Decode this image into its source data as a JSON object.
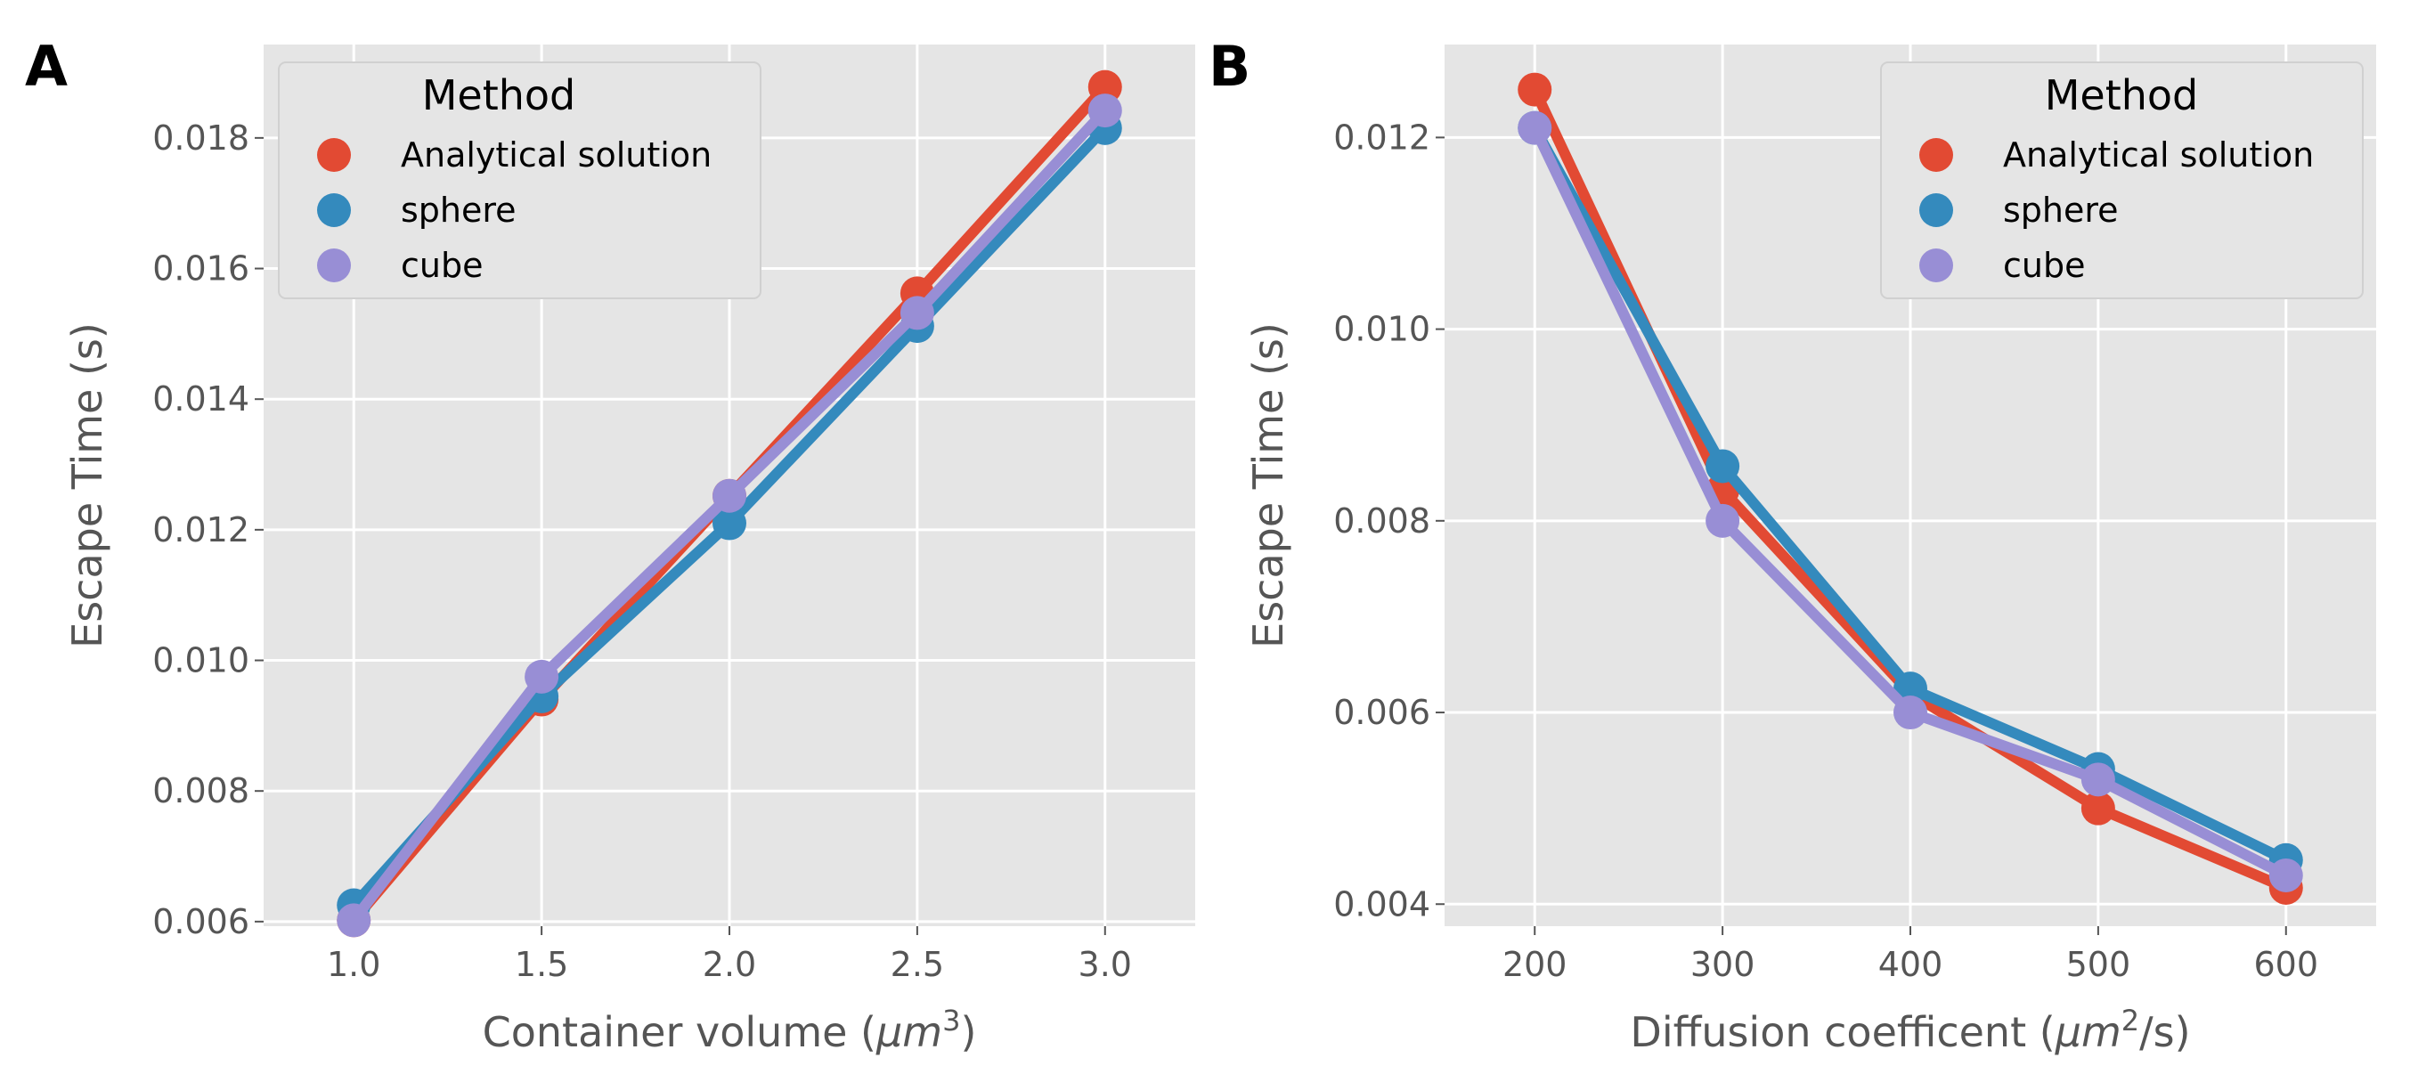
{
  "chart_data": [
    {
      "panel": "A",
      "type": "line",
      "xlabel_pre": "Container volume (",
      "xlabel_var": "μm",
      "xlabel_sup": "3",
      "xlabel_post": ")",
      "ylabel": "Escape Time (s)",
      "xlim": [
        0.76,
        3.24
      ],
      "ylim": [
        0.00593,
        0.01943
      ],
      "xticks": [
        1.0,
        1.5,
        2.0,
        2.5,
        3.0
      ],
      "xtick_labels": [
        "1.0",
        "1.5",
        "2.0",
        "2.5",
        "3.0"
      ],
      "yticks": [
        0.006,
        0.008,
        0.01,
        0.012,
        0.014,
        0.016,
        0.018
      ],
      "ytick_labels": [
        "0.006",
        "0.008",
        "0.010",
        "0.012",
        "0.014",
        "0.016",
        "0.018"
      ],
      "grid": true,
      "legend_title": "Method",
      "legend_position": "top-left",
      "x": [
        1.0,
        1.5,
        2.0,
        2.5,
        3.0
      ],
      "series": [
        {
          "name": "Analytical solution",
          "color": "#E24A33",
          "values": [
            0.00602,
            0.0094,
            0.01252,
            0.01562,
            0.01878
          ]
        },
        {
          "name": "sphere",
          "color": "#348ABD",
          "values": [
            0.00625,
            0.00945,
            0.0121,
            0.01512,
            0.01815
          ]
        },
        {
          "name": "cube",
          "color": "#988ED5",
          "values": [
            0.00602,
            0.00975,
            0.01252,
            0.01532,
            0.01842
          ]
        }
      ]
    },
    {
      "panel": "B",
      "type": "line",
      "xlabel_pre": "Diffusion coefficent (",
      "xlabel_var": "μm",
      "xlabel_sup": "2",
      "xlabel_post": "/s)",
      "ylabel": "Escape Time (s)",
      "xlim": [
        152,
        648
      ],
      "ylim": [
        0.00377,
        0.01297
      ],
      "xticks": [
        200,
        300,
        400,
        500,
        600
      ],
      "xtick_labels": [
        "200",
        "300",
        "400",
        "500",
        "600"
      ],
      "yticks": [
        0.004,
        0.006,
        0.008,
        0.01,
        0.012
      ],
      "ytick_labels": [
        "0.004",
        "0.006",
        "0.008",
        "0.010",
        "0.012"
      ],
      "grid": true,
      "legend_title": "Method",
      "legend_position": "top-right",
      "x": [
        200,
        300,
        400,
        500,
        600
      ],
      "series": [
        {
          "name": "Analytical solution",
          "color": "#E24A33",
          "values": [
            0.0125,
            0.00832,
            0.0062,
            0.005,
            0.00417
          ]
        },
        {
          "name": "sphere",
          "color": "#348ABD",
          "values": [
            0.0121,
            0.00857,
            0.00625,
            0.00541,
            0.00446
          ]
        },
        {
          "name": "cube",
          "color": "#988ED5",
          "values": [
            0.0121,
            0.008,
            0.006,
            0.0053,
            0.0043
          ]
        }
      ]
    }
  ]
}
